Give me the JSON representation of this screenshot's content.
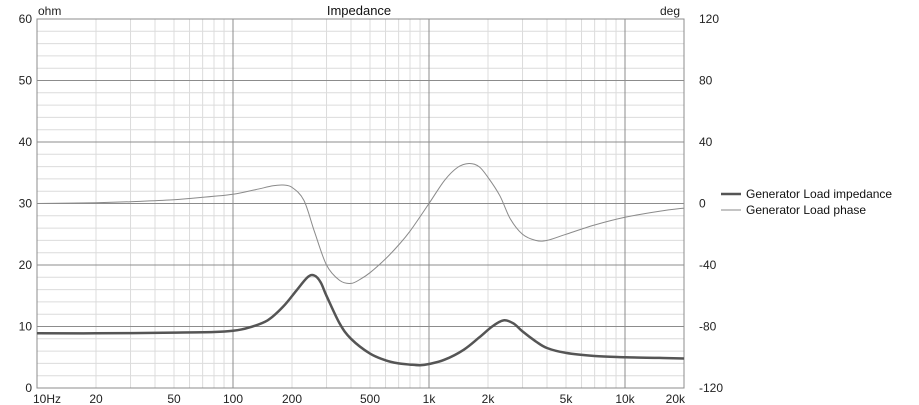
{
  "chart_data": {
    "type": "line",
    "title": "Impedance",
    "left_axis": {
      "unit": "ohm",
      "ylim": [
        0,
        60
      ],
      "ticks": [
        "0",
        "10",
        "20",
        "30",
        "40",
        "50",
        "60"
      ]
    },
    "right_axis": {
      "unit": "deg",
      "ylim": [
        -120,
        120
      ],
      "ticks": [
        "-120",
        "-80",
        "-40",
        "0",
        "40",
        "80",
        "120"
      ]
    },
    "x_axis": {
      "scale": "log",
      "xlim": [
        10,
        20000
      ],
      "ticks": [
        {
          "value": 10,
          "label": "10Hz"
        },
        {
          "value": 20,
          "label": "20"
        },
        {
          "value": 50,
          "label": "50"
        },
        {
          "value": 100,
          "label": "100"
        },
        {
          "value": 200,
          "label": "200"
        },
        {
          "value": 500,
          "label": "500"
        },
        {
          "value": 1000,
          "label": "1k"
        },
        {
          "value": 2000,
          "label": "2k"
        },
        {
          "value": 5000,
          "label": "5k"
        },
        {
          "value": 10000,
          "label": "10k"
        },
        {
          "value": 20000,
          "label": "20k"
        }
      ]
    },
    "grid": true,
    "legend_position": "right",
    "series": [
      {
        "name": "Generator Load impedance",
        "axis": "left",
        "color": "#555555",
        "stroke": "thick",
        "x": [
          10,
          20,
          50,
          80,
          100,
          120,
          150,
          180,
          210,
          240,
          260,
          280,
          300,
          350,
          400,
          500,
          600,
          700,
          800,
          900,
          1000,
          1200,
          1500,
          1800,
          2100,
          2400,
          2700,
          3000,
          3500,
          4000,
          5000,
          7000,
          10000,
          15000,
          20000
        ],
        "values": [
          8.9,
          8.9,
          9.0,
          9.1,
          9.3,
          9.8,
          11.0,
          13.2,
          15.8,
          18.0,
          18.3,
          17.2,
          15.0,
          10.5,
          8.0,
          5.6,
          4.5,
          4.0,
          3.8,
          3.7,
          3.9,
          4.6,
          6.2,
          8.2,
          10.0,
          11.0,
          10.5,
          9.2,
          7.6,
          6.5,
          5.7,
          5.2,
          5.0,
          4.9,
          4.8
        ]
      },
      {
        "name": "Generator Load phase",
        "axis": "right",
        "color": "#8a8a8a",
        "stroke": "thin",
        "x": [
          10,
          20,
          30,
          50,
          70,
          100,
          130,
          160,
          180,
          200,
          230,
          260,
          300,
          350,
          400,
          450,
          500,
          600,
          700,
          800,
          1000,
          1200,
          1400,
          1600,
          1800,
          2000,
          2300,
          2600,
          3000,
          3500,
          4000,
          5000,
          7000,
          10000,
          15000,
          20000
        ],
        "values": [
          0,
          0.5,
          1.2,
          2.5,
          4,
          6,
          9,
          11.5,
          12,
          10.5,
          2,
          -18,
          -40,
          -50,
          -52,
          -49,
          -45,
          -36,
          -27,
          -18,
          0,
          15,
          23.5,
          26,
          24,
          17,
          5,
          -10,
          -20,
          -24,
          -24,
          -20,
          -14,
          -9,
          -5,
          -3
        ]
      }
    ]
  }
}
